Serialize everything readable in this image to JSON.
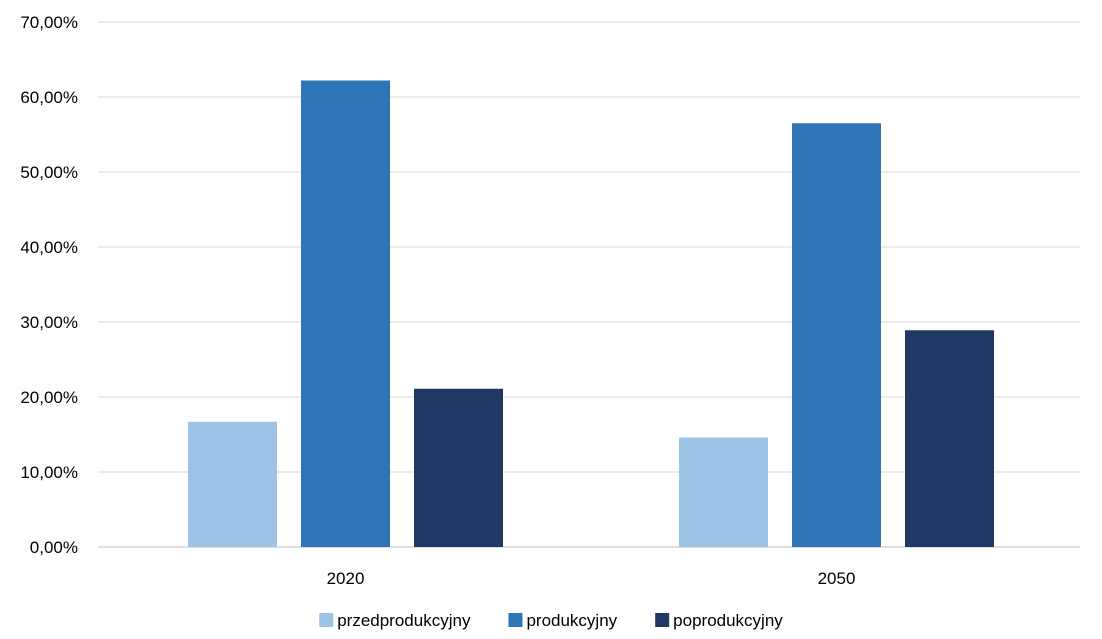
{
  "chart_data": {
    "type": "bar",
    "title": "",
    "xlabel": "",
    "ylabel": "",
    "categories": [
      "2020",
      "2050"
    ],
    "series": [
      {
        "name": "przedprodukcyjny",
        "color": "#9DC3E6",
        "values": [
          16.7,
          14.6
        ]
      },
      {
        "name": "produkcyjny",
        "color": "#2E75B6",
        "values": [
          62.2,
          56.5
        ]
      },
      {
        "name": "poprodukcyjny",
        "color": "#203864",
        "values": [
          21.1,
          28.9
        ]
      }
    ],
    "ylim": [
      0,
      70
    ],
    "yticks": [
      "0,00%",
      "10,00%",
      "20,00%",
      "30,00%",
      "40,00%",
      "50,00%",
      "60,00%",
      "70,00%"
    ],
    "grid": true,
    "legend_position": "bottom-center"
  }
}
